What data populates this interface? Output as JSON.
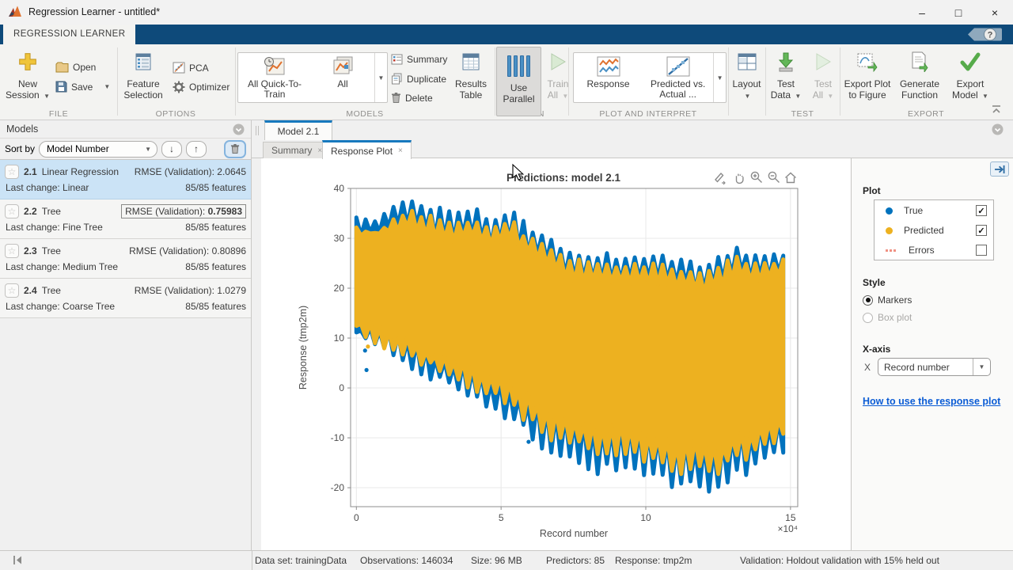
{
  "titlebar": {
    "title": "Regression Learner - untitled*"
  },
  "ribbon": {
    "tab": "REGRESSION LEARNER",
    "file": {
      "label": "FILE",
      "new_session": "New Session",
      "open": "Open",
      "save": "Save"
    },
    "options": {
      "label": "OPTIONS",
      "feature_selection": "Feature Selection",
      "pca": "PCA",
      "optimizer": "Optimizer"
    },
    "models": {
      "label": "MODELS",
      "all_quick": "All Quick-To-Train",
      "all": "All"
    },
    "train": {
      "label": "TRAIN",
      "summary": "Summary",
      "duplicate": "Duplicate",
      "delete": "Delete",
      "results_table": "Results Table",
      "use_parallel": "Use Parallel",
      "train_all": "Train All"
    },
    "plot": {
      "label": "PLOT AND INTERPRET",
      "response": "Response",
      "predicted_line1": "Predicted vs.",
      "predicted_line2": "Actual ..."
    },
    "layout": {
      "label": "Layout"
    },
    "test": {
      "label": "TEST",
      "test_data": "Test Data",
      "test_all": "Test All"
    },
    "export": {
      "label": "EXPORT",
      "export_plot": "Export Plot to Figure",
      "generate_function": "Generate Function",
      "export_model": "Export Model"
    }
  },
  "models_panel": {
    "title": "Models",
    "sort_by": "Sort by",
    "sort_value": "Model Number",
    "items": [
      {
        "id": "2.1",
        "name": "Linear Regression",
        "rmse_prefix": "RMSE (Validation):",
        "rmse_value": "2.0645",
        "last_change": "Last change: Linear",
        "features": "85/85 features"
      },
      {
        "id": "2.2",
        "name": "Tree",
        "rmse_prefix": "RMSE (Validation):",
        "rmse_value": "0.75983",
        "last_change": "Last change: Fine Tree",
        "features": "85/85 features"
      },
      {
        "id": "2.3",
        "name": "Tree",
        "rmse_prefix": "RMSE (Validation):",
        "rmse_value": "0.80896",
        "last_change": "Last change: Medium Tree",
        "features": "85/85 features"
      },
      {
        "id": "2.4",
        "name": "Tree",
        "rmse_prefix": "RMSE (Validation):",
        "rmse_value": "1.0279",
        "last_change": "Last change: Coarse Tree",
        "features": "85/85 features"
      }
    ]
  },
  "document": {
    "tab": "Model 2.1",
    "summary_tab": "Summary",
    "response_tab": "Response Plot",
    "close_glyph": "×"
  },
  "panel": {
    "plot_heading": "Plot",
    "legend": [
      {
        "label": "True",
        "color": "#0072BD",
        "checked": true,
        "marker": "dot"
      },
      {
        "label": "Predicted",
        "color": "#EDB120",
        "checked": true,
        "marker": "dot"
      },
      {
        "label": "Errors",
        "color": "#F09183",
        "checked": false,
        "marker": "dashes"
      }
    ],
    "style_heading": "Style",
    "markers": "Markers",
    "box_plot": "Box plot",
    "xaxis_heading": "X-axis",
    "x_label": "X",
    "x_value": "Record number",
    "help_link": "How to use the response plot"
  },
  "statusbar": {
    "dataset": "Data set: trainingData",
    "observations": "Observations: 146034",
    "size": "Size: 96 MB",
    "predictors": "Predictors: 85",
    "response": "Response: tmp2m",
    "validation": "Validation: Holdout validation with 15% held out"
  },
  "chart_data": {
    "type": "scatter",
    "title": "Predictions: model 2.1",
    "xlabel": "Record number",
    "ylabel": "Response (tmp2m)",
    "x_exponent": "×10⁴",
    "x_unit_scale": 10000,
    "xticks": [
      0,
      5,
      10,
      15
    ],
    "yticks": [
      40,
      30,
      20,
      10,
      0,
      -10,
      -20
    ],
    "xlim": [
      -0.2,
      15.25
    ],
    "ylim": [
      -23.8,
      40
    ],
    "grid": true,
    "x_start": 0,
    "x_end": 14.75,
    "spikes": 46,
    "series": [
      {
        "name": "True",
        "color": "#0072BD",
        "band": {
          "top_peaks": [
            [
              0,
              33.8
            ],
            [
              0.7,
              33
            ],
            [
              1.3,
              36
            ],
            [
              1.9,
              37.8
            ],
            [
              2.6,
              36
            ],
            [
              3.3,
              35
            ],
            [
              4.1,
              36
            ],
            [
              4.7,
              33.5
            ],
            [
              5.3,
              35.8
            ],
            [
              6,
              31.5
            ],
            [
              6.6,
              30.8
            ],
            [
              7.2,
              27
            ],
            [
              7.9,
              26.8
            ],
            [
              8.6,
              26.5
            ],
            [
              9.3,
              26
            ],
            [
              10,
              26.3
            ],
            [
              10.7,
              26
            ],
            [
              11.4,
              25
            ],
            [
              12,
              24.5
            ],
            [
              12.6,
              26
            ],
            [
              13.2,
              27.8
            ],
            [
              13.9,
              26
            ],
            [
              14.75,
              26.8
            ]
          ],
          "top_valleys": [
            [
              0,
              31
            ],
            [
              0.7,
              31
            ],
            [
              1.3,
              32
            ],
            [
              1.9,
              32.5
            ],
            [
              2.6,
              31
            ],
            [
              3.3,
              30
            ],
            [
              4.1,
              30.5
            ],
            [
              4.7,
              29
            ],
            [
              5.3,
              30
            ],
            [
              6,
              27
            ],
            [
              6.6,
              25.5
            ],
            [
              7.2,
              22.5
            ],
            [
              7.9,
              22
            ],
            [
              8.6,
              22
            ],
            [
              9.3,
              21.5
            ],
            [
              10,
              21.8
            ],
            [
              10.7,
              21.5
            ],
            [
              11.4,
              20.5
            ],
            [
              12,
              19.5
            ],
            [
              12.6,
              21
            ],
            [
              13.2,
              23
            ],
            [
              13.9,
              22
            ],
            [
              14.75,
              23.5
            ]
          ],
          "bottom_valleys": [
            [
              0,
              10.5
            ],
            [
              0.7,
              8
            ],
            [
              1.4,
              5.5
            ],
            [
              2.1,
              4
            ],
            [
              2.8,
              1.5
            ],
            [
              3.5,
              0
            ],
            [
              4.2,
              -2
            ],
            [
              4.9,
              -4
            ],
            [
              5.6,
              -7.5
            ],
            [
              6.3,
              -11
            ],
            [
              7,
              -13.5
            ],
            [
              7.7,
              -14.5
            ],
            [
              8.4,
              -16.5
            ],
            [
              9.1,
              -15.5
            ],
            [
              9.8,
              -16.5
            ],
            [
              10.5,
              -18
            ],
            [
              11.2,
              -20
            ],
            [
              11.9,
              -19
            ],
            [
              12.4,
              -21.3
            ],
            [
              13,
              -17.5
            ],
            [
              13.7,
              -16
            ],
            [
              14.2,
              -14
            ],
            [
              14.75,
              -12.5
            ]
          ],
          "bottom_peaks": [
            [
              0,
              12.5
            ],
            [
              0.7,
              11.5
            ],
            [
              1.4,
              10
            ],
            [
              2.1,
              8.5
            ],
            [
              2.8,
              6.5
            ],
            [
              3.5,
              5
            ],
            [
              4.2,
              3
            ],
            [
              4.9,
              1.5
            ],
            [
              5.6,
              -1
            ],
            [
              6.3,
              -3.5
            ],
            [
              7,
              -5.5
            ],
            [
              7.7,
              -6.5
            ],
            [
              8.4,
              -8
            ],
            [
              9.1,
              -7.5
            ],
            [
              9.8,
              -8.5
            ],
            [
              10.5,
              -10
            ],
            [
              11.2,
              -11.5
            ],
            [
              11.9,
              -11
            ],
            [
              12.4,
              -12.5
            ],
            [
              13,
              -10
            ],
            [
              13.7,
              -8.5
            ],
            [
              14.2,
              -7
            ],
            [
              14.75,
              -6
            ]
          ]
        }
      },
      {
        "name": "Predicted",
        "color": "#EDB120",
        "band": {
          "top_peaks": [
            [
              0,
              31.8
            ],
            [
              0.7,
              31.5
            ],
            [
              1.3,
              34
            ],
            [
              1.9,
              35.5
            ],
            [
              2.6,
              34
            ],
            [
              3.3,
              33
            ],
            [
              4.1,
              34
            ],
            [
              4.7,
              31.5
            ],
            [
              5.3,
              33.5
            ],
            [
              6,
              29.5
            ],
            [
              6.6,
              29
            ],
            [
              7.2,
              25.5
            ],
            [
              7.9,
              25.2
            ],
            [
              8.6,
              25
            ],
            [
              9.3,
              24.5
            ],
            [
              10,
              24.8
            ],
            [
              10.7,
              24.5
            ],
            [
              11.4,
              23.5
            ],
            [
              12,
              23
            ],
            [
              12.6,
              24.5
            ],
            [
              13.2,
              26
            ],
            [
              13.9,
              24.5
            ],
            [
              14.75,
              25.3
            ]
          ],
          "top_valleys": [
            [
              0,
              30.5
            ],
            [
              0.7,
              30.5
            ],
            [
              1.3,
              31.5
            ],
            [
              1.9,
              32
            ],
            [
              2.6,
              30.5
            ],
            [
              3.3,
              29.5
            ],
            [
              4.1,
              30
            ],
            [
              4.7,
              28.5
            ],
            [
              5.3,
              29.5
            ],
            [
              6,
              26.5
            ],
            [
              6.6,
              25
            ],
            [
              7.2,
              22
            ],
            [
              7.9,
              21.5
            ],
            [
              8.6,
              21.5
            ],
            [
              9.3,
              21
            ],
            [
              10,
              21.3
            ],
            [
              10.7,
              21
            ],
            [
              11.4,
              20
            ],
            [
              12,
              19
            ],
            [
              12.6,
              20.5
            ],
            [
              13.2,
              22.5
            ],
            [
              13.9,
              21.5
            ],
            [
              14.75,
              23
            ]
          ],
          "bottom_valleys": [
            [
              0,
              11.8
            ],
            [
              0.7,
              9.5
            ],
            [
              1.4,
              7.5
            ],
            [
              2.1,
              6
            ],
            [
              2.8,
              3.5
            ],
            [
              3.5,
              2
            ],
            [
              4.2,
              0
            ],
            [
              4.9,
              -2
            ],
            [
              5.6,
              -5
            ],
            [
              6.3,
              -8
            ],
            [
              7,
              -10.5
            ],
            [
              7.7,
              -11.5
            ],
            [
              8.4,
              -13
            ],
            [
              9.1,
              -12.5
            ],
            [
              9.8,
              -13.5
            ],
            [
              10.5,
              -15
            ],
            [
              11.2,
              -16.5
            ],
            [
              11.9,
              -15.5
            ],
            [
              12.4,
              -17.5
            ],
            [
              13,
              -14.5
            ],
            [
              13.7,
              -13
            ],
            [
              14.2,
              -11.5
            ],
            [
              14.75,
              -10
            ]
          ],
          "bottom_peaks": [
            [
              0,
              13
            ],
            [
              0.7,
              12
            ],
            [
              1.4,
              10.5
            ],
            [
              2.1,
              9
            ],
            [
              2.8,
              7
            ],
            [
              3.5,
              5.5
            ],
            [
              4.2,
              3.5
            ],
            [
              4.9,
              2
            ],
            [
              5.6,
              -0.5
            ],
            [
              6.3,
              -3
            ],
            [
              7,
              -5
            ],
            [
              7.7,
              -6
            ],
            [
              8.4,
              -7.5
            ],
            [
              9.1,
              -7
            ],
            [
              9.8,
              -8
            ],
            [
              10.5,
              -9.5
            ],
            [
              11.2,
              -11
            ],
            [
              11.9,
              -10.5
            ],
            [
              12.4,
              -12
            ],
            [
              13,
              -9.5
            ],
            [
              13.7,
              -8
            ],
            [
              14.2,
              -6.5
            ],
            [
              14.75,
              -5.5
            ]
          ]
        }
      }
    ],
    "stray_points": {
      "True": [
        [
          0.3,
          7.5
        ],
        [
          0.35,
          3.6
        ],
        [
          5.95,
          -10.8
        ]
      ],
      "Predicted": [
        [
          0.4,
          8.3
        ]
      ]
    },
    "legend": [
      {
        "name": "True",
        "color": "#0072BD"
      },
      {
        "name": "Predicted",
        "color": "#EDB120"
      },
      {
        "name": "Errors",
        "color": "#F09183"
      }
    ]
  }
}
